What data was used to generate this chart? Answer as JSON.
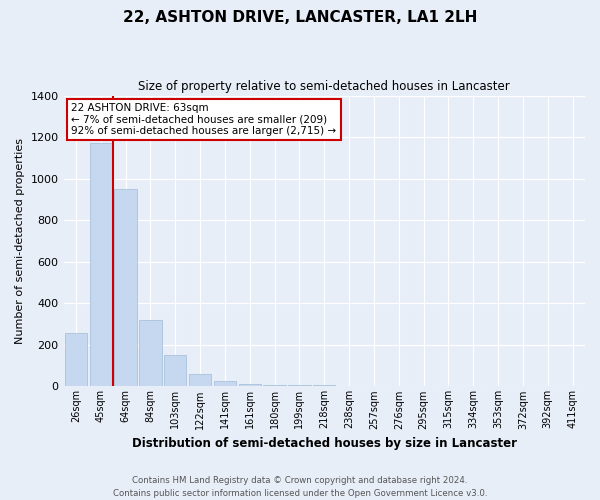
{
  "title": "22, ASHTON DRIVE, LANCASTER, LA1 2LH",
  "subtitle": "Size of property relative to semi-detached houses in Lancaster",
  "xlabel": "Distribution of semi-detached houses by size in Lancaster",
  "ylabel": "Number of semi-detached properties",
  "footer1": "Contains HM Land Registry data © Crown copyright and database right 2024.",
  "footer2": "Contains public sector information licensed under the Open Government Licence v3.0.",
  "categories": [
    "26sqm",
    "45sqm",
    "64sqm",
    "84sqm",
    "103sqm",
    "122sqm",
    "141sqm",
    "161sqm",
    "180sqm",
    "199sqm",
    "218sqm",
    "238sqm",
    "257sqm",
    "276sqm",
    "295sqm",
    "315sqm",
    "334sqm",
    "353sqm",
    "372sqm",
    "392sqm",
    "411sqm"
  ],
  "values": [
    255,
    1170,
    950,
    320,
    150,
    60,
    25,
    12,
    7,
    5,
    5,
    3,
    2,
    0,
    0,
    0,
    0,
    0,
    0,
    0,
    0
  ],
  "bar_color": "#c5d8f0",
  "bar_edge_color": "#a0bcd8",
  "annotation_title": "22 ASHTON DRIVE: 63sqm",
  "annotation_line1": "← 7% of semi-detached houses are smaller (209)",
  "annotation_line2": "92% of semi-detached houses are larger (2,715) →",
  "annotation_box_color": "#ffffff",
  "annotation_box_edge": "#cc0000",
  "red_line_color": "#cc0000",
  "background_color": "#e8eef8",
  "plot_background": "#e8eef8",
  "grid_color": "#ffffff",
  "ylim": [
    0,
    1400
  ],
  "yticks": [
    0,
    200,
    400,
    600,
    800,
    1000,
    1200,
    1400
  ],
  "red_line_index": 1.5
}
